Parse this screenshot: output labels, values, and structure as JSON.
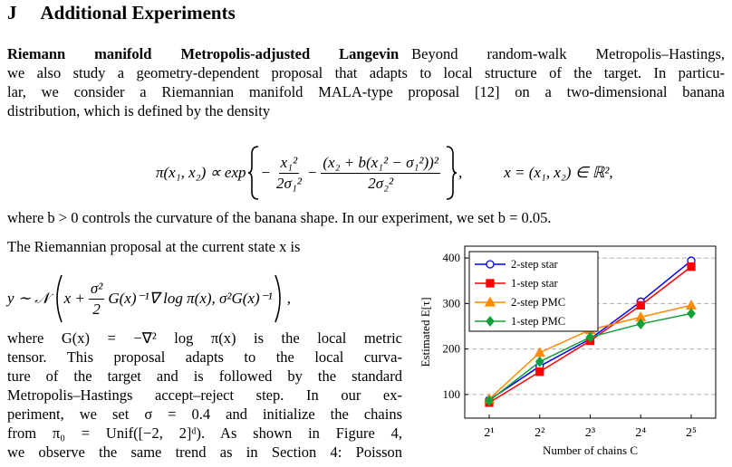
{
  "heading": {
    "number": "J",
    "title": "Additional Experiments"
  },
  "paragraph1": {
    "lead": "Riemann manifold Metropolis-adjusted Langevin",
    "lines": [
      "Beyond random-walk Metropolis–Hastings,",
      "we also study a geometry-dependent proposal that adapts to local structure of the target. In particu-",
      "lar, we consider a Riemannian manifold MALA-type proposal [12] on a two-dimensional banana",
      "distribution, which is defined by the density"
    ]
  },
  "equation1": {
    "lhs": "π(x₁, x₂) ∝ exp",
    "minus1": "−",
    "frac1": {
      "num": "x₁²",
      "den": "2σ₁²"
    },
    "minus2": "−",
    "frac2": {
      "num": "(x₂ + b(x₁² − σ₁²))²",
      "den": "2σ₂²"
    },
    "comma": ",",
    "rhs": "x = (x₁, x₂) ∈ ℝ²,"
  },
  "paragraph2": "where b > 0 controls the curvature of the banana shape. In our experiment, we set b = 0.05.",
  "paragraph3": "The Riemannian proposal at the current state x is",
  "equation2": {
    "lhs": "y ∼ 𝒩",
    "pre": "x +",
    "frac": {
      "num": "σ²",
      "den": "2"
    },
    "post": "G(x)⁻¹∇ log π(x), σ²G(x)⁻¹",
    "comma": ","
  },
  "paragraph4": {
    "lines": [
      "where G(x) = −∇² log π(x) is the local metric",
      "tensor. This proposal adapts to the local curva-",
      "ture of the target and is followed by the standard",
      "Metropolis–Hastings accept–reject step. In our ex-",
      "periment, we set σ = 0.4 and initialize the chains",
      "from π₀ = Unif([−2, 2]ᵈ). As shown in Figure 4,",
      "we observe the same trend as in Section 4: Poisson"
    ]
  },
  "chart_data": {
    "type": "line",
    "xlabel": "Number of chains C",
    "ylabel": "Estimated E[τ]",
    "categories": [
      "2¹",
      "2²",
      "2³",
      "2⁴",
      "2⁵"
    ],
    "ylim": [
      48,
      426
    ],
    "yticks": [
      100,
      200,
      300,
      400
    ],
    "grid": true,
    "legend": "upper left",
    "series": [
      {
        "name": "2-step star",
        "color": "#0000ff",
        "marker": "circle",
        "values": [
          88,
          162,
          222,
          304,
          394
        ]
      },
      {
        "name": "1-step star",
        "color": "#ff0000",
        "marker": "square",
        "values": [
          82,
          150,
          218,
          296,
          381
        ]
      },
      {
        "name": "2-step PMC",
        "color": "#ff8c00",
        "marker": "triangle",
        "values": [
          90,
          192,
          242,
          270,
          296
        ]
      },
      {
        "name": "1-step PMC",
        "color": "#13a03a",
        "marker": "diamond",
        "values": [
          86,
          172,
          226,
          255,
          278
        ]
      }
    ]
  }
}
